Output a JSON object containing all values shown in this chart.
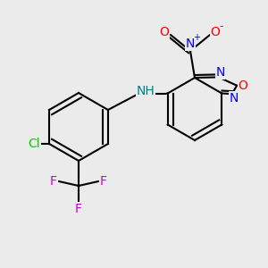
{
  "background_color": "#ebebeb",
  "bond_color": "#000000",
  "lw": 1.5,
  "colors": {
    "N": "#0000ff",
    "O": "#ff0000",
    "Cl": "#00cc00",
    "F": "#cc00cc",
    "NH": "#008080",
    "C": "#000000"
  },
  "fontsize": 11
}
